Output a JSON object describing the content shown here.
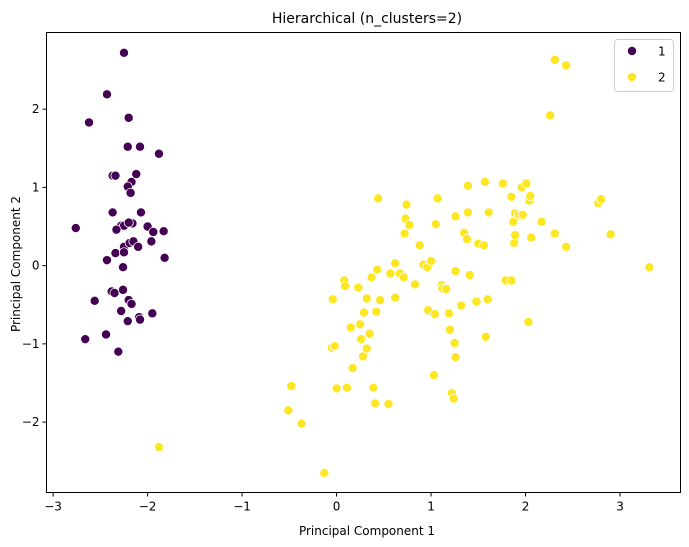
{
  "chart_data": {
    "type": "scatter",
    "title": "Hierarchical (n_clusters=2)",
    "xlabel": "Principal Component 1",
    "ylabel": "Principal Component 2",
    "xlim": [
      -3.07,
      3.64
    ],
    "ylim": [
      -2.9,
      2.98
    ],
    "xticks": [
      -3,
      -2,
      -1,
      0,
      1,
      2,
      3
    ],
    "yticks": [
      -2,
      -1,
      0,
      1,
      2
    ],
    "xtick_labels": [
      "−3",
      "−2",
      "−1",
      "0",
      "1",
      "2",
      "3"
    ],
    "ytick_labels": [
      "−2",
      "−1",
      "0",
      "1",
      "2"
    ],
    "grid": false,
    "legend": {
      "position": "top-right",
      "entries": [
        "1",
        "2"
      ]
    },
    "series": [
      {
        "name": "1",
        "color": "#440154",
        "points": [
          [
            -2.25,
            2.72
          ],
          [
            -2.43,
            2.19
          ],
          [
            -2.62,
            1.83
          ],
          [
            -2.2,
            1.89
          ],
          [
            -2.08,
            1.52
          ],
          [
            -2.21,
            1.52
          ],
          [
            -1.88,
            1.43
          ],
          [
            -2.37,
            1.15
          ],
          [
            -2.34,
            1.15
          ],
          [
            -2.12,
            1.17
          ],
          [
            -2.17,
            1.07
          ],
          [
            -2.21,
            1.01
          ],
          [
            -2.18,
            0.93
          ],
          [
            -2.37,
            0.68
          ],
          [
            -2.07,
            0.68
          ],
          [
            -2.28,
            0.51
          ],
          [
            -2.25,
            0.51
          ],
          [
            -2.16,
            0.54
          ],
          [
            -2.2,
            0.55
          ],
          [
            -2.33,
            0.46
          ],
          [
            -2.34,
            0.16
          ],
          [
            -2.0,
            0.5
          ],
          [
            -1.94,
            0.43
          ],
          [
            -1.83,
            0.44
          ],
          [
            -1.96,
            0.31
          ],
          [
            -2.76,
            0.48
          ],
          [
            -2.25,
            0.24
          ],
          [
            -2.19,
            0.29
          ],
          [
            -2.15,
            0.31
          ],
          [
            -2.1,
            0.24
          ],
          [
            -2.25,
            0.17
          ],
          [
            -1.82,
            0.1
          ],
          [
            -2.43,
            0.07
          ],
          [
            -2.26,
            -0.02
          ],
          [
            -2.38,
            -0.33
          ],
          [
            -2.35,
            -0.35
          ],
          [
            -2.26,
            -0.31
          ],
          [
            -2.56,
            -0.45
          ],
          [
            -2.2,
            -0.44
          ],
          [
            -2.17,
            -0.49
          ],
          [
            -2.21,
            -0.71
          ],
          [
            -2.09,
            -0.66
          ],
          [
            -2.08,
            -0.69
          ],
          [
            -1.95,
            -0.61
          ],
          [
            -2.28,
            -0.58
          ],
          [
            -2.44,
            -0.88
          ],
          [
            -2.66,
            -0.94
          ],
          [
            -2.31,
            -1.1
          ]
        ]
      },
      {
        "name": "2",
        "color": "#fde725",
        "points": [
          [
            -1.88,
            -2.32
          ],
          [
            -0.51,
            -1.85
          ],
          [
            -0.48,
            -1.54
          ],
          [
            -0.37,
            -2.02
          ],
          [
            -0.13,
            -2.65
          ],
          [
            -0.05,
            -1.05
          ],
          [
            -0.02,
            -1.03
          ],
          [
            -0.04,
            -0.43
          ],
          [
            0.0,
            -1.57
          ],
          [
            0.08,
            -0.19
          ],
          [
            0.09,
            -0.26
          ],
          [
            0.11,
            -1.56
          ],
          [
            0.15,
            -0.79
          ],
          [
            0.17,
            -1.31
          ],
          [
            0.23,
            -0.28
          ],
          [
            0.25,
            -0.75
          ],
          [
            0.26,
            -0.94
          ],
          [
            0.28,
            -1.16
          ],
          [
            0.29,
            -0.6
          ],
          [
            0.32,
            -1.06
          ],
          [
            0.32,
            -0.42
          ],
          [
            0.35,
            -0.87
          ],
          [
            0.37,
            -0.15
          ],
          [
            0.39,
            -1.56
          ],
          [
            0.41,
            -1.76
          ],
          [
            0.42,
            -0.59
          ],
          [
            0.43,
            -0.05
          ],
          [
            0.44,
            0.86
          ],
          [
            0.46,
            -0.44
          ],
          [
            0.55,
            -1.77
          ],
          [
            0.57,
            -0.1
          ],
          [
            0.62,
            0.03
          ],
          [
            0.62,
            -0.41
          ],
          [
            0.67,
            -0.1
          ],
          [
            0.71,
            -0.15
          ],
          [
            0.72,
            0.41
          ],
          [
            0.73,
            0.6
          ],
          [
            0.74,
            0.78
          ],
          [
            0.77,
            0.52
          ],
          [
            0.83,
            -0.24
          ],
          [
            0.88,
            0.26
          ],
          [
            0.92,
            0.01
          ],
          [
            0.96,
            -0.02
          ],
          [
            0.97,
            -0.57
          ],
          [
            1.0,
            0.06
          ],
          [
            1.03,
            -1.4
          ],
          [
            1.04,
            -0.62
          ],
          [
            1.05,
            0.53
          ],
          [
            1.07,
            0.86
          ],
          [
            1.11,
            -0.25
          ],
          [
            1.12,
            -0.29
          ],
          [
            1.16,
            -0.3
          ],
          [
            1.19,
            -0.61
          ],
          [
            1.2,
            -0.82
          ],
          [
            1.22,
            -1.63
          ],
          [
            1.24,
            -1.7
          ],
          [
            1.25,
            -0.99
          ],
          [
            1.26,
            -1.17
          ],
          [
            1.26,
            0.63
          ],
          [
            1.26,
            -0.07
          ],
          [
            1.32,
            -0.51
          ],
          [
            1.35,
            0.42
          ],
          [
            1.38,
            0.34
          ],
          [
            1.39,
            0.68
          ],
          [
            1.39,
            1.02
          ],
          [
            1.41,
            -0.12
          ],
          [
            1.48,
            -0.46
          ],
          [
            1.5,
            0.28
          ],
          [
            1.56,
            0.26
          ],
          [
            1.57,
            1.07
          ],
          [
            1.58,
            -0.91
          ],
          [
            1.6,
            -0.43
          ],
          [
            1.61,
            0.68
          ],
          [
            1.76,
            1.05
          ],
          [
            1.79,
            -0.19
          ],
          [
            1.85,
            -0.19
          ],
          [
            1.85,
            0.88
          ],
          [
            1.87,
            0.56
          ],
          [
            1.88,
            0.29
          ],
          [
            1.89,
            0.39
          ],
          [
            1.89,
            0.67
          ],
          [
            1.93,
            0.65
          ],
          [
            1.96,
            1.0
          ],
          [
            1.97,
            0.65
          ],
          [
            2.01,
            1.05
          ],
          [
            2.03,
            -0.72
          ],
          [
            2.04,
            0.83
          ],
          [
            2.05,
            0.89
          ],
          [
            2.06,
            0.36
          ],
          [
            2.17,
            0.56
          ],
          [
            2.26,
            1.92
          ],
          [
            2.31,
            0.41
          ],
          [
            2.31,
            2.63
          ],
          [
            2.43,
            0.24
          ],
          [
            2.43,
            2.56
          ],
          [
            2.77,
            0.8
          ],
          [
            2.8,
            0.85
          ],
          [
            2.9,
            0.4
          ],
          [
            3.31,
            -0.02
          ]
        ]
      }
    ]
  }
}
